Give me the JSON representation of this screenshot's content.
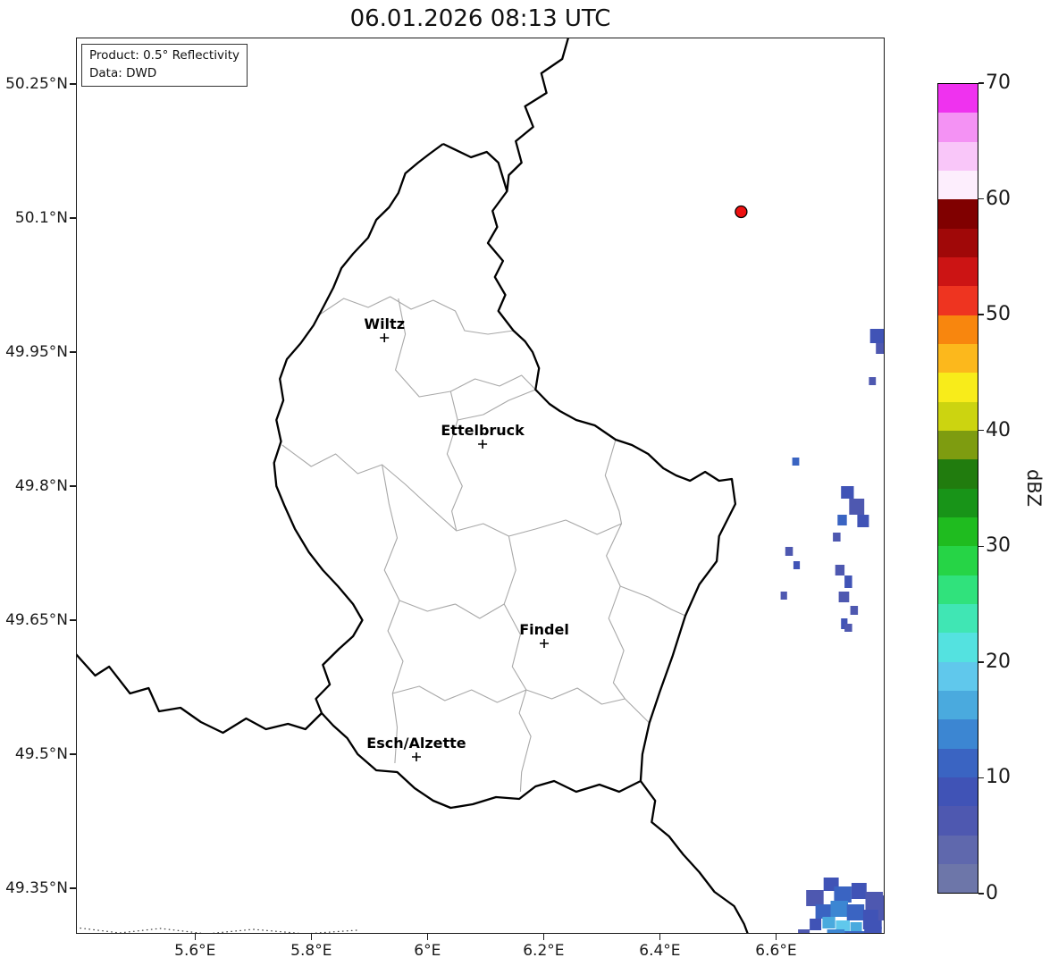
{
  "title": "06.01.2026 08:13 UTC",
  "info_box": {
    "product_line": "Product: 0.5° Reflectivity",
    "data_line": "Data: DWD"
  },
  "axes": {
    "x_ticks": [
      {
        "label": "5.6°E",
        "lon": 5.6
      },
      {
        "label": "5.8°E",
        "lon": 5.8
      },
      {
        "label": "6°E",
        "lon": 6.0
      },
      {
        "label": "6.2°E",
        "lon": 6.2
      },
      {
        "label": "6.4°E",
        "lon": 6.4
      },
      {
        "label": "6.6°E",
        "lon": 6.6
      }
    ],
    "y_ticks": [
      {
        "label": "50.25°N",
        "lat": 50.25
      },
      {
        "label": "50.1°N",
        "lat": 50.1
      },
      {
        "label": "49.95°N",
        "lat": 49.95
      },
      {
        "label": "49.8°N",
        "lat": 49.8
      },
      {
        "label": "49.65°N",
        "lat": 49.65
      },
      {
        "label": "49.5°N",
        "lat": 49.5
      },
      {
        "label": "49.35°N",
        "lat": 49.35
      }
    ]
  },
  "extent": {
    "lon_min": 5.395,
    "lon_max": 6.787,
    "lat_min": 49.299,
    "lat_max": 50.302
  },
  "colorbar": {
    "label": "dBZ",
    "unit_min": 0,
    "unit_max": 70,
    "step": 2.5,
    "tick_values": [
      0,
      10,
      20,
      30,
      40,
      50,
      60,
      70
    ],
    "colors_bottom_to_top": [
      "#6d76a9",
      "#5f68ad",
      "#4e58b0",
      "#4053b6",
      "#3a64c2",
      "#3c86d2",
      "#4aaade",
      "#60c8ec",
      "#54e2e0",
      "#40e6b4",
      "#30e27c",
      "#26d446",
      "#1fbc1f",
      "#189418",
      "#217c0e",
      "#7e9c10",
      "#ccd410",
      "#f8ec1a",
      "#fcb81c",
      "#f8860e",
      "#ee3420",
      "#cc1414",
      "#a00808",
      "#800000",
      "#fdeefd",
      "#f9c6f9",
      "#f492f4",
      "#ef32ef"
    ]
  },
  "style_colors": {
    "country_border": "#000000",
    "district_border": "#a8a8a8",
    "dotted_border": "#444444",
    "frame": "#1a1a1a",
    "radar_marker_fill": "#ee1111",
    "radar_marker_edge": "#000000"
  },
  "map": {
    "country_border": [
      [
        6.027,
        50.183
      ],
      [
        6.075,
        50.168
      ],
      [
        6.102,
        50.174
      ],
      [
        6.122,
        50.162
      ],
      [
        6.137,
        50.13
      ],
      [
        6.112,
        50.108
      ],
      [
        6.12,
        50.09
      ],
      [
        6.104,
        50.072
      ],
      [
        6.13,
        50.052
      ],
      [
        6.116,
        50.034
      ],
      [
        6.134,
        50.014
      ],
      [
        6.122,
        49.996
      ],
      [
        6.148,
        49.974
      ],
      [
        6.168,
        49.962
      ],
      [
        6.181,
        49.95
      ],
      [
        6.192,
        49.932
      ],
      [
        6.186,
        49.908
      ],
      [
        6.21,
        49.892
      ],
      [
        6.228,
        49.884
      ],
      [
        6.256,
        49.874
      ],
      [
        6.288,
        49.868
      ],
      [
        6.324,
        49.852
      ],
      [
        6.352,
        49.846
      ],
      [
        6.38,
        49.836
      ],
      [
        6.406,
        49.82
      ],
      [
        6.428,
        49.812
      ],
      [
        6.452,
        49.806
      ],
      [
        6.478,
        49.816
      ],
      [
        6.502,
        49.806
      ],
      [
        6.524,
        49.808
      ],
      [
        6.53,
        49.78
      ],
      [
        6.502,
        49.744
      ],
      [
        6.498,
        49.716
      ],
      [
        6.468,
        49.69
      ],
      [
        6.444,
        49.655
      ],
      [
        6.422,
        49.61
      ],
      [
        6.4,
        49.57
      ],
      [
        6.382,
        49.535
      ],
      [
        6.37,
        49.5
      ],
      [
        6.367,
        49.47
      ],
      [
        6.33,
        49.458
      ],
      [
        6.296,
        49.466
      ],
      [
        6.256,
        49.458
      ],
      [
        6.218,
        49.47
      ],
      [
        6.186,
        49.464
      ],
      [
        6.158,
        49.45
      ],
      [
        6.118,
        49.452
      ],
      [
        6.078,
        49.444
      ],
      [
        6.04,
        49.44
      ],
      [
        6.01,
        49.448
      ],
      [
        5.978,
        49.462
      ],
      [
        5.948,
        49.48
      ],
      [
        5.912,
        49.482
      ],
      [
        5.88,
        49.5
      ],
      [
        5.862,
        49.518
      ],
      [
        5.838,
        49.532
      ],
      [
        5.818,
        49.546
      ],
      [
        5.808,
        49.562
      ],
      [
        5.832,
        49.578
      ],
      [
        5.82,
        49.6
      ],
      [
        5.848,
        49.618
      ],
      [
        5.872,
        49.632
      ],
      [
        5.888,
        49.65
      ],
      [
        5.872,
        49.668
      ],
      [
        5.846,
        49.688
      ],
      [
        5.82,
        49.706
      ],
      [
        5.796,
        49.726
      ],
      [
        5.772,
        49.752
      ],
      [
        5.754,
        49.778
      ],
      [
        5.74,
        49.8
      ],
      [
        5.736,
        49.826
      ],
      [
        5.748,
        49.85
      ],
      [
        5.74,
        49.874
      ],
      [
        5.752,
        49.896
      ],
      [
        5.746,
        49.92
      ],
      [
        5.758,
        49.942
      ],
      [
        5.782,
        49.96
      ],
      [
        5.804,
        49.98
      ],
      [
        5.822,
        50.002
      ],
      [
        5.838,
        50.022
      ],
      [
        5.852,
        50.044
      ],
      [
        5.872,
        50.06
      ],
      [
        5.898,
        50.078
      ],
      [
        5.912,
        50.098
      ],
      [
        5.934,
        50.112
      ],
      [
        5.95,
        50.128
      ],
      [
        5.962,
        50.15
      ],
      [
        5.984,
        50.162
      ],
      [
        6.004,
        50.172
      ],
      [
        6.027,
        50.183
      ]
    ],
    "foreign_borders": [
      [
        [
          6.243,
          50.303
        ],
        [
          6.232,
          50.278
        ],
        [
          6.196,
          50.262
        ],
        [
          6.205,
          50.24
        ],
        [
          6.168,
          50.225
        ],
        [
          6.182,
          50.202
        ],
        [
          6.152,
          50.186
        ],
        [
          6.162,
          50.162
        ],
        [
          6.14,
          50.148
        ],
        [
          6.137,
          50.13
        ]
      ],
      [
        [
          5.395,
          49.612
        ],
        [
          5.428,
          49.588
        ],
        [
          5.452,
          49.598
        ],
        [
          5.488,
          49.568
        ],
        [
          5.52,
          49.574
        ],
        [
          5.538,
          49.548
        ],
        [
          5.575,
          49.552
        ],
        [
          5.61,
          49.536
        ],
        [
          5.648,
          49.524
        ],
        [
          5.688,
          49.54
        ],
        [
          5.722,
          49.528
        ],
        [
          5.76,
          49.534
        ],
        [
          5.79,
          49.528
        ],
        [
          5.818,
          49.546
        ]
      ],
      [
        [
          6.367,
          49.47
        ],
        [
          6.392,
          49.448
        ],
        [
          6.386,
          49.424
        ],
        [
          6.416,
          49.408
        ],
        [
          6.44,
          49.388
        ],
        [
          6.468,
          49.368
        ],
        [
          6.494,
          49.346
        ],
        [
          6.528,
          49.33
        ],
        [
          6.545,
          49.31
        ],
        [
          6.552,
          49.298
        ]
      ]
    ],
    "district_borders": [
      [
        [
          5.81,
          49.99
        ],
        [
          5.856,
          50.01
        ],
        [
          5.898,
          50.0
        ],
        [
          5.936,
          50.012
        ],
        [
          5.972,
          49.998
        ],
        [
          6.01,
          50.008
        ],
        [
          6.048,
          49.996
        ],
        [
          6.064,
          49.974
        ],
        [
          6.104,
          49.97
        ],
        [
          6.148,
          49.974
        ]
      ],
      [
        [
          5.95,
          50.01
        ],
        [
          5.962,
          49.97
        ],
        [
          5.945,
          49.93
        ],
        [
          5.986,
          49.9
        ],
        [
          6.04,
          49.906
        ],
        [
          6.052,
          49.874
        ],
        [
          6.096,
          49.88
        ],
        [
          6.14,
          49.896
        ],
        [
          6.186,
          49.908
        ]
      ],
      [
        [
          6.052,
          49.874
        ],
        [
          6.034,
          49.836
        ],
        [
          6.06,
          49.8
        ],
        [
          6.042,
          49.772
        ],
        [
          6.05,
          49.75
        ]
      ],
      [
        [
          5.75,
          49.846
        ],
        [
          5.8,
          49.822
        ],
        [
          5.842,
          49.836
        ],
        [
          5.88,
          49.814
        ],
        [
          5.922,
          49.824
        ],
        [
          5.962,
          49.802
        ],
        [
          6.002,
          49.778
        ],
        [
          6.05,
          49.75
        ],
        [
          6.096,
          49.758
        ],
        [
          6.14,
          49.744
        ],
        [
          6.186,
          49.752
        ],
        [
          6.238,
          49.762
        ],
        [
          6.292,
          49.746
        ],
        [
          6.334,
          49.758
        ]
      ],
      [
        [
          5.922,
          49.824
        ],
        [
          5.934,
          49.78
        ],
        [
          5.948,
          49.742
        ],
        [
          5.926,
          49.706
        ],
        [
          5.952,
          49.672
        ],
        [
          5.932,
          49.638
        ],
        [
          5.958,
          49.604
        ],
        [
          5.94,
          49.568
        ],
        [
          5.948,
          49.53
        ],
        [
          5.944,
          49.49
        ]
      ],
      [
        [
          6.14,
          49.744
        ],
        [
          6.152,
          49.706
        ],
        [
          6.132,
          49.668
        ],
        [
          6.16,
          49.634
        ],
        [
          6.146,
          49.598
        ],
        [
          6.17,
          49.572
        ],
        [
          6.158,
          49.546
        ],
        [
          6.178,
          49.52
        ],
        [
          6.162,
          49.48
        ],
        [
          6.16,
          49.458
        ]
      ],
      [
        [
          5.94,
          49.568
        ],
        [
          5.986,
          49.576
        ],
        [
          6.03,
          49.56
        ],
        [
          6.076,
          49.572
        ],
        [
          6.12,
          49.558
        ],
        [
          6.17,
          49.572
        ],
        [
          6.214,
          49.562
        ],
        [
          6.258,
          49.574
        ],
        [
          6.3,
          49.556
        ],
        [
          6.34,
          49.562
        ],
        [
          6.382,
          49.535
        ]
      ],
      [
        [
          6.324,
          49.852
        ],
        [
          6.306,
          49.812
        ],
        [
          6.33,
          49.772
        ],
        [
          6.334,
          49.758
        ],
        [
          6.308,
          49.722
        ],
        [
          6.332,
          49.688
        ],
        [
          6.312,
          49.652
        ],
        [
          6.338,
          49.616
        ],
        [
          6.32,
          49.58
        ],
        [
          6.34,
          49.562
        ]
      ],
      [
        [
          6.332,
          49.688
        ],
        [
          6.38,
          49.676
        ],
        [
          6.42,
          49.662
        ],
        [
          6.444,
          49.655
        ]
      ],
      [
        [
          6.04,
          49.906
        ],
        [
          6.082,
          49.92
        ],
        [
          6.124,
          49.912
        ],
        [
          6.162,
          49.924
        ],
        [
          6.186,
          49.908
        ]
      ],
      [
        [
          5.952,
          49.672
        ],
        [
          6.0,
          49.66
        ],
        [
          6.048,
          49.668
        ],
        [
          6.09,
          49.652
        ],
        [
          6.132,
          49.668
        ]
      ]
    ],
    "dotted_borders": [
      [
        [
          5.395,
          49.306
        ],
        [
          5.47,
          49.3
        ],
        [
          5.54,
          49.305
        ],
        [
          5.62,
          49.299
        ],
        [
          5.7,
          49.304
        ],
        [
          5.79,
          49.299
        ],
        [
          5.878,
          49.303
        ]
      ]
    ],
    "cities": [
      {
        "name": "Wiltz",
        "lon": 5.926,
        "lat": 49.966
      },
      {
        "name": "Ettelbruck",
        "lon": 6.095,
        "lat": 49.847
      },
      {
        "name": "Findel",
        "lon": 6.201,
        "lat": 49.624
      },
      {
        "name": "Esch/Alzette",
        "lon": 5.981,
        "lat": 49.497
      }
    ],
    "radar_marker": {
      "lon": 6.54,
      "lat": 50.107
    },
    "echoes": [
      {
        "lon": 6.762,
        "lat": 49.976,
        "dlon": 0.028,
        "dlat": 0.016,
        "dbz": 7.5
      },
      {
        "lon": 6.772,
        "lat": 49.96,
        "dlon": 0.018,
        "dlat": 0.012,
        "dbz": 5
      },
      {
        "lon": 6.76,
        "lat": 49.922,
        "dlon": 0.012,
        "dlat": 0.009,
        "dbz": 5
      },
      {
        "lon": 6.628,
        "lat": 49.832,
        "dlon": 0.012,
        "dlat": 0.009,
        "dbz": 10
      },
      {
        "lon": 6.712,
        "lat": 49.8,
        "dlon": 0.022,
        "dlat": 0.014,
        "dbz": 7.5
      },
      {
        "lon": 6.726,
        "lat": 49.786,
        "dlon": 0.026,
        "dlat": 0.018,
        "dbz": 5
      },
      {
        "lon": 6.706,
        "lat": 49.768,
        "dlon": 0.016,
        "dlat": 0.012,
        "dbz": 10
      },
      {
        "lon": 6.74,
        "lat": 49.768,
        "dlon": 0.02,
        "dlat": 0.014,
        "dbz": 7.5
      },
      {
        "lon": 6.698,
        "lat": 49.748,
        "dlon": 0.013,
        "dlat": 0.01,
        "dbz": 5
      },
      {
        "lon": 6.616,
        "lat": 49.732,
        "dlon": 0.013,
        "dlat": 0.01,
        "dbz": 5
      },
      {
        "lon": 6.63,
        "lat": 49.716,
        "dlon": 0.011,
        "dlat": 0.009,
        "dbz": 7.5
      },
      {
        "lon": 6.702,
        "lat": 49.712,
        "dlon": 0.016,
        "dlat": 0.012,
        "dbz": 5
      },
      {
        "lon": 6.718,
        "lat": 49.7,
        "dlon": 0.013,
        "dlat": 0.014,
        "dbz": 7.5
      },
      {
        "lon": 6.708,
        "lat": 49.682,
        "dlon": 0.018,
        "dlat": 0.012,
        "dbz": 5
      },
      {
        "lon": 6.728,
        "lat": 49.666,
        "dlon": 0.013,
        "dlat": 0.01,
        "dbz": 5
      },
      {
        "lon": 6.712,
        "lat": 49.652,
        "dlon": 0.011,
        "dlat": 0.012,
        "dbz": 7.5
      },
      {
        "lon": 6.608,
        "lat": 49.682,
        "dlon": 0.011,
        "dlat": 0.009,
        "dbz": 5
      },
      {
        "lon": 6.718,
        "lat": 49.646,
        "dlon": 0.013,
        "dlat": 0.009,
        "dbz": 5
      },
      {
        "lon": 6.652,
        "lat": 49.348,
        "dlon": 0.03,
        "dlat": 0.018,
        "dbz": 5
      },
      {
        "lon": 6.682,
        "lat": 49.362,
        "dlon": 0.026,
        "dlat": 0.015,
        "dbz": 7.5
      },
      {
        "lon": 6.7,
        "lat": 49.352,
        "dlon": 0.03,
        "dlat": 0.018,
        "dbz": 10
      },
      {
        "lon": 6.73,
        "lat": 49.356,
        "dlon": 0.026,
        "dlat": 0.018,
        "dbz": 7.5
      },
      {
        "lon": 6.754,
        "lat": 49.346,
        "dlon": 0.03,
        "dlat": 0.02,
        "dbz": 5
      },
      {
        "lon": 6.668,
        "lat": 49.332,
        "dlon": 0.026,
        "dlat": 0.016,
        "dbz": 10
      },
      {
        "lon": 6.694,
        "lat": 49.336,
        "dlon": 0.03,
        "dlat": 0.018,
        "dbz": 12.5
      },
      {
        "lon": 6.722,
        "lat": 49.332,
        "dlon": 0.03,
        "dlat": 0.018,
        "dbz": 10
      },
      {
        "lon": 6.75,
        "lat": 49.326,
        "dlon": 0.032,
        "dlat": 0.022,
        "dbz": 7.5
      },
      {
        "lon": 6.776,
        "lat": 49.342,
        "dlon": 0.011,
        "dlat": 0.028,
        "dbz": 5
      },
      {
        "lon": 6.658,
        "lat": 49.316,
        "dlon": 0.02,
        "dlat": 0.013,
        "dbz": 7.5
      },
      {
        "lon": 6.68,
        "lat": 49.318,
        "dlon": 0.022,
        "dlat": 0.013,
        "dbz": 15
      },
      {
        "lon": 6.703,
        "lat": 49.314,
        "dlon": 0.024,
        "dlat": 0.013,
        "dbz": 17.5
      },
      {
        "lon": 6.728,
        "lat": 49.312,
        "dlon": 0.02,
        "dlat": 0.011,
        "dbz": 15
      },
      {
        "lon": 6.688,
        "lat": 49.304,
        "dlon": 0.03,
        "dlat": 0.009,
        "dbz": 12.5
      },
      {
        "lon": 6.718,
        "lat": 49.302,
        "dlon": 0.04,
        "dlat": 0.008,
        "dbz": 10
      },
      {
        "lon": 6.752,
        "lat": 49.307,
        "dlon": 0.03,
        "dlat": 0.011,
        "dbz": 7.5
      },
      {
        "lon": 6.638,
        "lat": 49.304,
        "dlon": 0.02,
        "dlat": 0.008,
        "dbz": 5
      }
    ]
  }
}
